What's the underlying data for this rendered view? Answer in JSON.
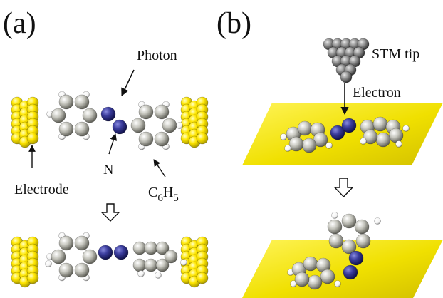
{
  "panels": {
    "a": {
      "label": "(a)"
    },
    "b": {
      "label": "(b)"
    }
  },
  "labels": {
    "photon": "Photon",
    "nitrogen": "N",
    "electrode": "Electrode",
    "phenyl": {
      "c": "C",
      "six": "6",
      "h": "H",
      "five": "5"
    },
    "stm_tip": "STM tip",
    "electron": "Electron"
  },
  "colors": {
    "gold": "#ffe600",
    "gold_dark": "#b8a800",
    "carbon": "#c8c8c0",
    "carbon_dark": "#6e6e66",
    "nitrogen": "#3a3c9c",
    "nitrogen_dark": "#14155a",
    "hydrogen": "#ffffff",
    "tip": "#8a8a8a",
    "surface_light": "#fff45a",
    "surface_dark": "#d8c600"
  }
}
